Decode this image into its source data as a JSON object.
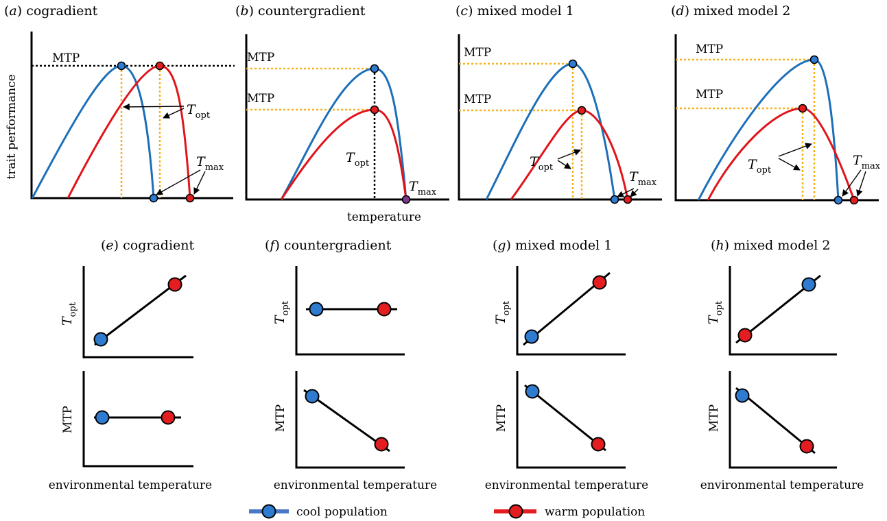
{
  "panels_top": [
    {
      "letter": "a",
      "name": "cogradient"
    },
    {
      "letter": "b",
      "name": "countergradient"
    },
    {
      "letter": "c",
      "name": "mixed model 1"
    },
    {
      "letter": "d",
      "name": "mixed model 2"
    }
  ],
  "panels_bottom": [
    {
      "letter": "e",
      "name": "cogradient"
    },
    {
      "letter": "f",
      "name": "countergradient"
    },
    {
      "letter": "g",
      "name": "mixed model 1"
    },
    {
      "letter": "h",
      "name": "mixed model 2"
    }
  ],
  "labels": {
    "y_axis_top": "trait performance",
    "x_axis_top": "temperature",
    "x_axis_bottom": "environmental temperature",
    "mtp": "MTP",
    "t_symbol": "T",
    "opt_sub": "opt",
    "max_sub": "max"
  },
  "legend": {
    "cool": "cool population",
    "warm": "warm population"
  },
  "colors": {
    "cool": "#1c6fb8",
    "warm": "#e0151b",
    "guide": "#f5b21b"
  }
}
